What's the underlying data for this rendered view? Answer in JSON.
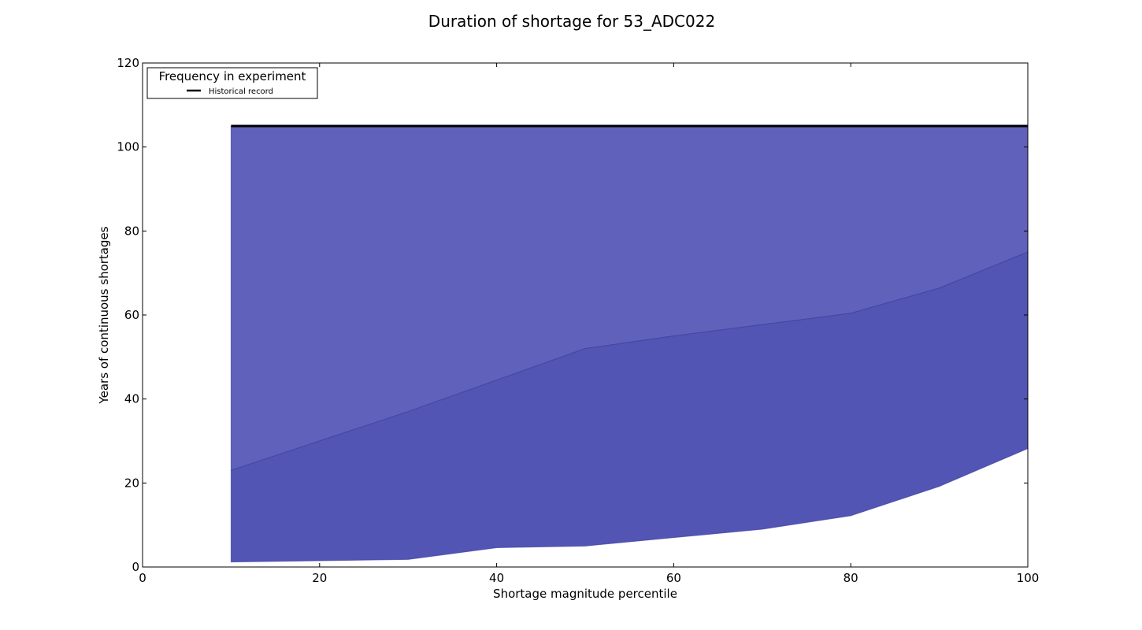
{
  "chart_data": {
    "type": "area",
    "title": "Duration of shortage for 53_ADC022",
    "xlabel": "Shortage magnitude percentile",
    "ylabel": "Years of continuous shortages",
    "xlim": [
      0,
      100
    ],
    "ylim": [
      0,
      120
    ],
    "xticks": [
      0,
      20,
      40,
      60,
      80,
      100
    ],
    "yticks": [
      0,
      20,
      40,
      60,
      80,
      100,
      120
    ],
    "x": [
      10,
      20,
      30,
      40,
      50,
      60,
      70,
      80,
      90,
      100
    ],
    "bands": [
      {
        "lower": [
          23,
          30,
          37,
          44.5,
          52,
          55,
          57.7,
          60.4,
          66.4,
          75
        ],
        "upper": [
          105,
          105,
          105,
          105,
          105,
          105,
          105,
          105,
          105,
          105
        ],
        "color": "#6061ba"
      },
      {
        "lower": [
          1.2,
          1.5,
          1.8,
          4.6,
          5,
          7,
          9,
          12.2,
          19.2,
          28.2
        ],
        "upper": [
          23,
          30,
          37,
          44.5,
          52,
          55,
          57.7,
          60.4,
          66.4,
          75
        ],
        "color": "#5255b3"
      }
    ],
    "series": [
      {
        "name": "Historical record",
        "x": [
          10,
          100
        ],
        "y": [
          105,
          105
        ],
        "color": "#000000"
      }
    ],
    "legend": {
      "title": "Frequency in experiment",
      "placement": "top-left"
    },
    "grid": false
  }
}
